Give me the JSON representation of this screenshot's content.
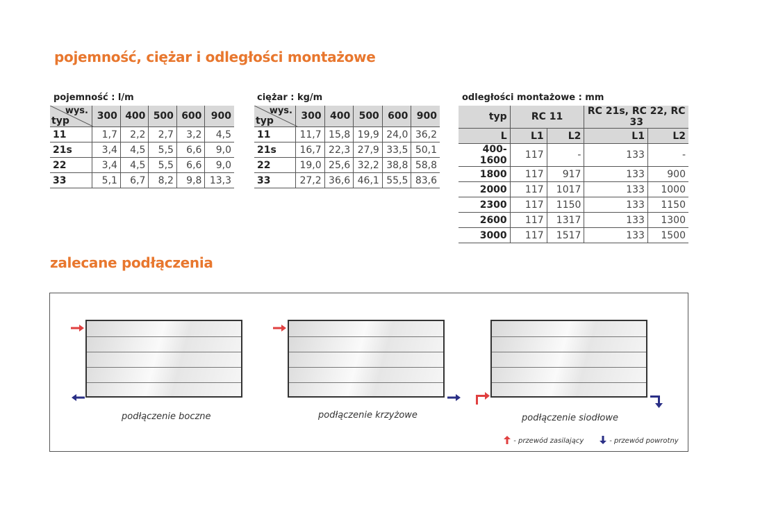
{
  "section1_title": "pojemność, ciężar i odległości montażowe",
  "section2_title": "zalecane podłączenia",
  "capacity": {
    "caption": "pojemność : l/m",
    "corner_top": "wys.",
    "corner_bottom": "typ",
    "heights": [
      "300",
      "400",
      "500",
      "600",
      "900"
    ],
    "rows": [
      {
        "typ": "11",
        "v": [
          "1,7",
          "2,2",
          "2,7",
          "3,2",
          "4,5"
        ]
      },
      {
        "typ": "21s",
        "v": [
          "3,4",
          "4,5",
          "5,5",
          "6,6",
          "9,0"
        ]
      },
      {
        "typ": "22",
        "v": [
          "3,4",
          "4,5",
          "5,5",
          "6,6",
          "9,0"
        ]
      },
      {
        "typ": "33",
        "v": [
          "5,1",
          "6,7",
          "8,2",
          "9,8",
          "13,3"
        ]
      }
    ]
  },
  "weight": {
    "caption": "ciężar : kg/m",
    "corner_top": "wys.",
    "corner_bottom": "typ",
    "heights": [
      "300",
      "400",
      "500",
      "600",
      "900"
    ],
    "rows": [
      {
        "typ": "11",
        "v": [
          "11,7",
          "15,8",
          "19,9",
          "24,0",
          "36,2"
        ]
      },
      {
        "typ": "21s",
        "v": [
          "16,7",
          "22,3",
          "27,9",
          "33,5",
          "50,1"
        ]
      },
      {
        "typ": "22",
        "v": [
          "19,0",
          "25,6",
          "32,2",
          "38,8",
          "58,8"
        ]
      },
      {
        "typ": "33",
        "v": [
          "27,2",
          "36,6",
          "46,1",
          "55,5",
          "83,6"
        ]
      }
    ]
  },
  "distances": {
    "caption": "odległości montażowe : mm",
    "typ": "typ",
    "group1": "RC 11",
    "group2": "RC 21s, RC 22, RC 33",
    "sub": [
      "L",
      "L1",
      "L2",
      "L1",
      "L2"
    ],
    "rows": [
      [
        "400-1600",
        "117",
        "-",
        "133",
        "-"
      ],
      [
        "1800",
        "117",
        "917",
        "133",
        "900"
      ],
      [
        "2000",
        "117",
        "1017",
        "133",
        "1000"
      ],
      [
        "2300",
        "117",
        "1150",
        "133",
        "1150"
      ],
      [
        "2600",
        "117",
        "1317",
        "133",
        "1300"
      ],
      [
        "3000",
        "117",
        "1517",
        "133",
        "1500"
      ]
    ]
  },
  "connections": [
    {
      "label": "podłączenie boczne"
    },
    {
      "label": "podłączenie krzyżowe"
    },
    {
      "label": "podłączenie siodłowe"
    }
  ],
  "legend": {
    "supply": "- przewód zasilający",
    "return": "- przewód powrotny"
  },
  "colors": {
    "title": "#e8772e",
    "supply": "#e04040",
    "return": "#2a2f86",
    "header_bg": "#d8d8d8"
  }
}
